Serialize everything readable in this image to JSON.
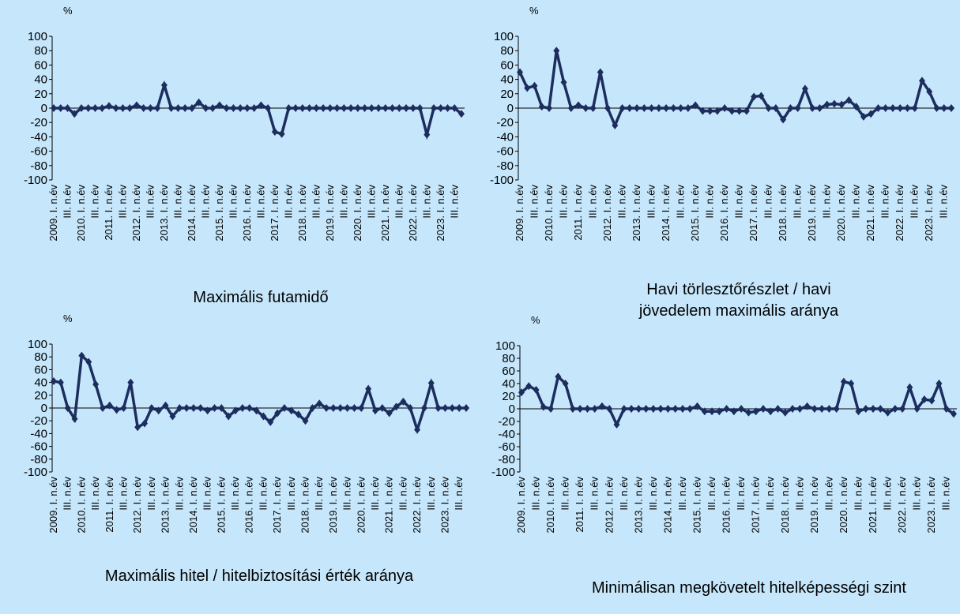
{
  "chart_data": [
    {
      "type": "line",
      "title": "Maximális futamidő",
      "y_unit": "%",
      "color": "#1c2d5e",
      "categories": [
        "2009. I. n.év",
        null,
        "III. n.év",
        null,
        "2010. I. n.év",
        null,
        "III. n.év",
        null,
        "2011. I. n.év",
        null,
        "III. n.év",
        null,
        "2012. I. n.év",
        null,
        "III. n.év",
        null,
        "2013. I. n.év",
        null,
        "III. n.év",
        null,
        "2014. I. n.év",
        null,
        "III. n.év",
        null,
        "2015. I. n.év",
        null,
        "III. n.év",
        null,
        "2016. I. n.év",
        null,
        "III. n.év",
        null,
        "2017. I. n.év",
        null,
        "III. n.év",
        null,
        "2018. I. n.év",
        null,
        "III. n.év",
        null,
        "2019. I. n.év",
        null,
        "III. n.év",
        null,
        "2020. I. n.év",
        null,
        "III. n.év",
        null,
        "2021. I. n.év",
        null,
        "III. n.év",
        null,
        "2022. I. n.év",
        null,
        "III. n.év",
        null,
        "2023. I. n.év",
        null,
        "III. n.év",
        null
      ],
      "values": [
        0,
        0,
        0,
        -8,
        0,
        0,
        0,
        0,
        3,
        0,
        0,
        0,
        4,
        0,
        0,
        0,
        32,
        0,
        0,
        0,
        0,
        8,
        0,
        0,
        4,
        0,
        0,
        0,
        0,
        0,
        4,
        0,
        -33,
        -36,
        0,
        0,
        0,
        0,
        0,
        0,
        0,
        0,
        0,
        0,
        0,
        0,
        0,
        0,
        0,
        0,
        0,
        0,
        0,
        0,
        -37,
        0,
        0,
        0,
        0,
        -8
      ],
      "ylim": [
        -100,
        100
      ],
      "yticks": [
        -100,
        -80,
        -60,
        -40,
        -20,
        0,
        20,
        40,
        60,
        80,
        100
      ]
    },
    {
      "type": "line",
      "title": "Havi törlesztőrészlet / havi jövedelem maximális aránya",
      "y_unit": "%",
      "color": "#1c2d5e",
      "categories": [
        "2009. I. n.év",
        null,
        "III. n.év",
        null,
        "2010. I. n.év",
        null,
        "III. n.év",
        null,
        "2011. I. n.év",
        null,
        "III. n.év",
        null,
        "2012. I. n.év",
        null,
        "III. n.év",
        null,
        "2013. I. n.év",
        null,
        "III. n.év",
        null,
        "2014. I. n.év",
        null,
        "III. n.év",
        null,
        "2015. I. n.év",
        null,
        "III. n.év",
        null,
        "2016. I. n.év",
        null,
        "III. n.év",
        null,
        "2017. I. n.év",
        null,
        "III. n.év",
        null,
        "2018. I. n.év",
        null,
        "III. n.év",
        null,
        "2019. I. n.év",
        null,
        "III. n.év",
        null,
        "2020. I. n.év",
        null,
        "III. n.év",
        null,
        "2021. I. n.év",
        null,
        "III. n.év",
        null,
        "2022. I. n.év",
        null,
        "III. n.év",
        null,
        "2023. I. n.év",
        null,
        "III. n.év",
        null
      ],
      "values": [
        50,
        28,
        31,
        2,
        0,
        80,
        36,
        0,
        4,
        0,
        0,
        50,
        0,
        -24,
        0,
        0,
        0,
        0,
        0,
        0,
        0,
        0,
        0,
        0,
        4,
        -4,
        -4,
        -4,
        0,
        -4,
        -4,
        -4,
        16,
        17,
        0,
        0,
        -16,
        0,
        0,
        27,
        0,
        0,
        5,
        6,
        5,
        11,
        2,
        -12,
        -8,
        0,
        0,
        0,
        0,
        0,
        0,
        38,
        23,
        0,
        0,
        0
      ],
      "ylim": [
        -100,
        100
      ],
      "yticks": [
        -100,
        -80,
        -60,
        -40,
        -20,
        0,
        20,
        40,
        60,
        80,
        100
      ]
    },
    {
      "type": "line",
      "title": "Maximális hitel / hitelbiztosítási érték aránya",
      "y_unit": "%",
      "color": "#1c2d5e",
      "categories": [
        "2009. I. n.év",
        null,
        "III. n.év",
        null,
        "2010. I. n.év",
        null,
        "III. n.év",
        null,
        "2011. I. n.év",
        null,
        "III. n.év",
        null,
        "2012. I. n.év",
        null,
        "III. n.év",
        null,
        "2013. I. n.év",
        null,
        "III. n.év",
        null,
        "2014. I. n.év",
        null,
        "III. n.év",
        null,
        "2015. I. n.év",
        null,
        "III. n.év",
        null,
        "2016. I. n.év",
        null,
        "III. n.év",
        null,
        "2017. I. n.év",
        null,
        "III. n.év",
        null,
        "2018. I. n.év",
        null,
        "III. n.év",
        null,
        "2019. I. n.év",
        null,
        "III. n.év",
        null,
        "2020. I. n.év",
        null,
        "III. n.év",
        null,
        "2021. I. n.év",
        null,
        "III. n.év",
        null,
        "2022. I. n.év",
        null,
        "III. n.év",
        null,
        "2023. I. n.év",
        null,
        "III. n.év",
        null
      ],
      "values": [
        42,
        40,
        0,
        -17,
        82,
        72,
        37,
        0,
        4,
        -3,
        0,
        40,
        -30,
        -24,
        0,
        -4,
        4,
        -13,
        0,
        0,
        0,
        0,
        -4,
        0,
        0,
        -13,
        -4,
        0,
        0,
        -4,
        -13,
        -22,
        -8,
        0,
        -4,
        -10,
        -20,
        0,
        7,
        0,
        0,
        0,
        0,
        0,
        0,
        30,
        -4,
        0,
        -8,
        2,
        10,
        0,
        -34,
        0,
        39,
        0,
        0,
        0,
        0,
        0
      ],
      "ylim": [
        -100,
        100
      ],
      "yticks": [
        -100,
        -80,
        -60,
        -40,
        -20,
        0,
        20,
        40,
        60,
        80,
        100
      ]
    },
    {
      "type": "line",
      "title": "Minimálisan megkövetelt hitelképességi szint",
      "y_unit": "%",
      "color": "#1c2d5e",
      "categories": [
        "2009. I. n.év",
        null,
        "III. n.év",
        null,
        "2010. I. n.év",
        null,
        "III. n.év",
        null,
        "2011. I. n.év",
        null,
        "III. n.év",
        null,
        "2012. I. n.év",
        null,
        "III. n.év",
        null,
        "2013. I. n.év",
        null,
        "III. n.év",
        null,
        "2014. I. n.év",
        null,
        "III. n.év",
        null,
        "2015. I. n.év",
        null,
        "III. n.év",
        null,
        "2016. I. n.év",
        null,
        "III. n.év",
        null,
        "2017. I. n.év",
        null,
        "III. n.év",
        null,
        "2018. I. n.év",
        null,
        "III. n.év",
        null,
        "2019. I. n.év",
        null,
        "III. n.év",
        null,
        "2020. I. n.év",
        null,
        "III. n.év",
        null,
        "2021. I. n.év",
        null,
        "III. n.év",
        null,
        "2022. I. n.év",
        null,
        "III. n.év",
        null,
        "2023. I. n.év",
        null,
        "III. n.év",
        null
      ],
      "values": [
        26,
        36,
        30,
        3,
        0,
        51,
        40,
        0,
        0,
        0,
        0,
        4,
        0,
        -25,
        0,
        0,
        0,
        0,
        0,
        0,
        0,
        0,
        0,
        0,
        4,
        -4,
        -4,
        -4,
        0,
        -4,
        0,
        -6,
        -4,
        0,
        -4,
        0,
        -6,
        0,
        0,
        4,
        0,
        0,
        0,
        0,
        43,
        40,
        -4,
        0,
        0,
        0,
        -6,
        0,
        0,
        34,
        0,
        15,
        13,
        40,
        0,
        -8
      ],
      "ylim": [
        -100,
        100
      ],
      "yticks": [
        -100,
        -80,
        -60,
        -40,
        -20,
        0,
        20,
        40,
        60,
        80,
        100
      ]
    }
  ]
}
